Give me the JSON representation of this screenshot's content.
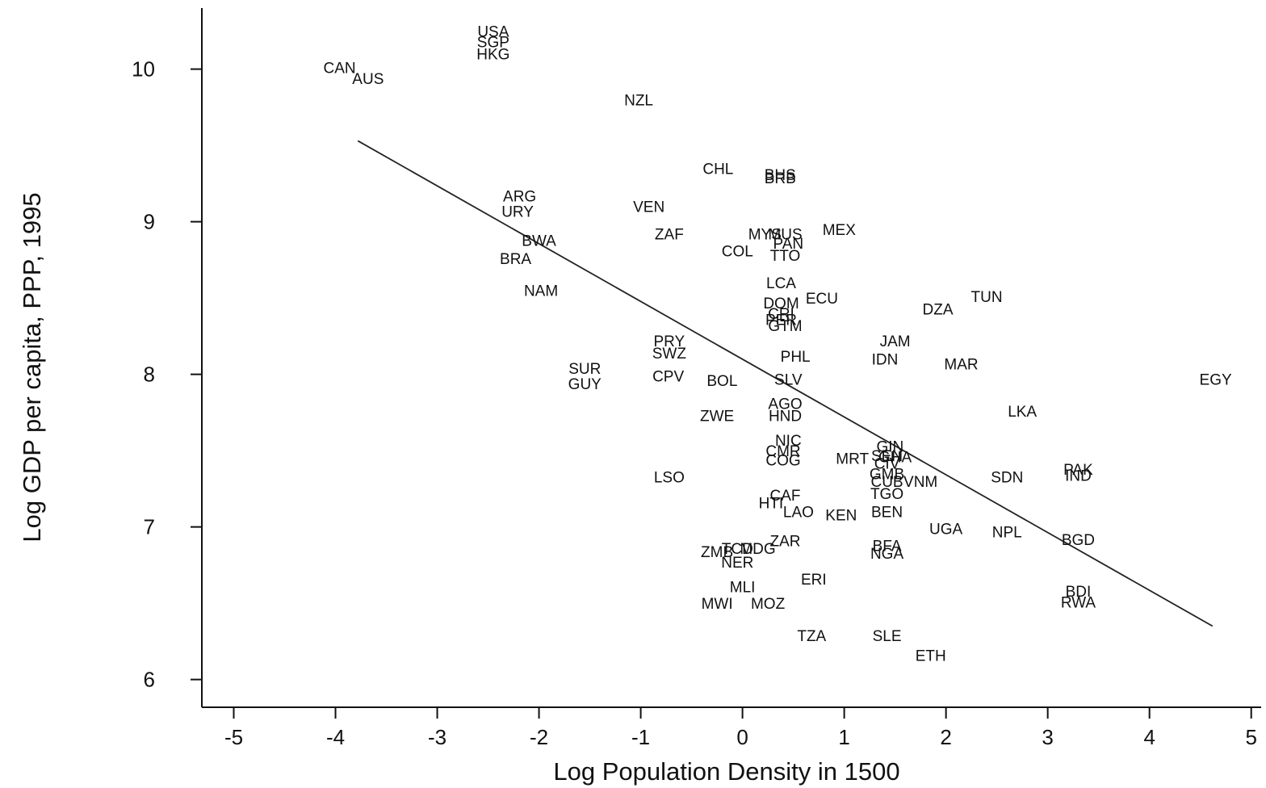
{
  "chart_data": {
    "type": "scatter",
    "title": "",
    "xlabel": "Log Population Density in 1500",
    "ylabel": "Log GDP per capita, PPP, 1995",
    "xlim": [
      -5.25,
      5.05
    ],
    "ylim": [
      5.85,
      10.4
    ],
    "xticks": [
      -5,
      -4,
      -3,
      -2,
      -1,
      0,
      1,
      2,
      3,
      4,
      5
    ],
    "yticks": [
      6,
      7,
      8,
      9,
      10
    ],
    "grid": false,
    "legend": "none",
    "fit_line": {
      "x": [
        -3.78,
        4.62
      ],
      "y": [
        9.53,
        6.35
      ]
    },
    "points": [
      {
        "label": "USA",
        "x": -2.45,
        "y": 10.25
      },
      {
        "label": "SGP",
        "x": -2.45,
        "y": 10.18
      },
      {
        "label": "HKG",
        "x": -2.45,
        "y": 10.1
      },
      {
        "label": "CAN",
        "x": -3.96,
        "y": 10.01
      },
      {
        "label": "AUS",
        "x": -3.68,
        "y": 9.94
      },
      {
        "label": "NZL",
        "x": -1.02,
        "y": 9.8
      },
      {
        "label": "CHL",
        "x": -0.24,
        "y": 9.35
      },
      {
        "label": "BHS",
        "x": 0.37,
        "y": 9.31
      },
      {
        "label": "BRB",
        "x": 0.37,
        "y": 9.29
      },
      {
        "label": "ARG",
        "x": -2.19,
        "y": 9.17
      },
      {
        "label": "URY",
        "x": -2.21,
        "y": 9.07
      },
      {
        "label": "VEN",
        "x": -0.92,
        "y": 9.1
      },
      {
        "label": "MEX",
        "x": 0.95,
        "y": 8.95
      },
      {
        "label": "MYS",
        "x": 0.22,
        "y": 8.92
      },
      {
        "label": "MUS",
        "x": 0.42,
        "y": 8.92
      },
      {
        "label": "ZAF",
        "x": -0.72,
        "y": 8.92
      },
      {
        "label": "BWA",
        "x": -2.0,
        "y": 8.88
      },
      {
        "label": "PAN",
        "x": 0.45,
        "y": 8.86
      },
      {
        "label": "COL",
        "x": -0.05,
        "y": 8.81
      },
      {
        "label": "TTO",
        "x": 0.42,
        "y": 8.78
      },
      {
        "label": "BRA",
        "x": -2.23,
        "y": 8.76
      },
      {
        "label": "LCA",
        "x": 0.38,
        "y": 8.6
      },
      {
        "label": "NAM",
        "x": -1.98,
        "y": 8.55
      },
      {
        "label": "ECU",
        "x": 0.78,
        "y": 8.5
      },
      {
        "label": "TUN",
        "x": 2.4,
        "y": 8.51
      },
      {
        "label": "DOM",
        "x": 0.38,
        "y": 8.47
      },
      {
        "label": "DZA",
        "x": 1.92,
        "y": 8.43
      },
      {
        "label": "CRI",
        "x": 0.38,
        "y": 8.4
      },
      {
        "label": "PER",
        "x": 0.38,
        "y": 8.36
      },
      {
        "label": "GTM",
        "x": 0.42,
        "y": 8.32
      },
      {
        "label": "JAM",
        "x": 1.5,
        "y": 8.22
      },
      {
        "label": "PRY",
        "x": -0.72,
        "y": 8.22
      },
      {
        "label": "SWZ",
        "x": -0.72,
        "y": 8.14
      },
      {
        "label": "PHL",
        "x": 0.52,
        "y": 8.12
      },
      {
        "label": "IDN",
        "x": 1.4,
        "y": 8.1
      },
      {
        "label": "MAR",
        "x": 2.15,
        "y": 8.07
      },
      {
        "label": "SUR",
        "x": -1.55,
        "y": 8.04
      },
      {
        "label": "GUY",
        "x": -1.55,
        "y": 7.94
      },
      {
        "label": "CPV",
        "x": -0.73,
        "y": 7.99
      },
      {
        "label": "BOL",
        "x": -0.2,
        "y": 7.96
      },
      {
        "label": "SLV",
        "x": 0.45,
        "y": 7.97
      },
      {
        "label": "EGY",
        "x": 4.65,
        "y": 7.97
      },
      {
        "label": "AGO",
        "x": 0.42,
        "y": 7.81
      },
      {
        "label": "LKA",
        "x": 2.75,
        "y": 7.76
      },
      {
        "label": "ZWE",
        "x": -0.25,
        "y": 7.73
      },
      {
        "label": "HND",
        "x": 0.42,
        "y": 7.73
      },
      {
        "label": "NIC",
        "x": 0.45,
        "y": 7.57
      },
      {
        "label": "GIN",
        "x": 1.45,
        "y": 7.53
      },
      {
        "label": "CMR",
        "x": 0.4,
        "y": 7.5
      },
      {
        "label": "SEN",
        "x": 1.42,
        "y": 7.47
      },
      {
        "label": "GHA",
        "x": 1.5,
        "y": 7.46
      },
      {
        "label": "MRT",
        "x": 1.08,
        "y": 7.45
      },
      {
        "label": "COG",
        "x": 0.4,
        "y": 7.44
      },
      {
        "label": "CIV",
        "x": 1.42,
        "y": 7.42
      },
      {
        "label": "PAK",
        "x": 3.3,
        "y": 7.38
      },
      {
        "label": "IND",
        "x": 3.3,
        "y": 7.34
      },
      {
        "label": "LSO",
        "x": -0.72,
        "y": 7.33
      },
      {
        "label": "SDN",
        "x": 2.6,
        "y": 7.33
      },
      {
        "label": "GMB",
        "x": 1.42,
        "y": 7.35
      },
      {
        "label": "VNM",
        "x": 1.75,
        "y": 7.3
      },
      {
        "label": "CUB",
        "x": 1.42,
        "y": 7.3
      },
      {
        "label": "TGO",
        "x": 1.42,
        "y": 7.22
      },
      {
        "label": "CAF",
        "x": 0.42,
        "y": 7.21
      },
      {
        "label": "HTI",
        "x": 0.28,
        "y": 7.16
      },
      {
        "label": "LAO",
        "x": 0.55,
        "y": 7.1
      },
      {
        "label": "BEN",
        "x": 1.42,
        "y": 7.1
      },
      {
        "label": "KEN",
        "x": 0.97,
        "y": 7.08
      },
      {
        "label": "UGA",
        "x": 2.0,
        "y": 6.99
      },
      {
        "label": "NPL",
        "x": 2.6,
        "y": 6.97
      },
      {
        "label": "BGD",
        "x": 3.3,
        "y": 6.92
      },
      {
        "label": "ZAR",
        "x": 0.42,
        "y": 6.91
      },
      {
        "label": "BFA",
        "x": 1.42,
        "y": 6.88
      },
      {
        "label": "TCD",
        "x": -0.05,
        "y": 6.86
      },
      {
        "label": "MDG",
        "x": 0.15,
        "y": 6.86
      },
      {
        "label": "ZMB",
        "x": -0.25,
        "y": 6.84
      },
      {
        "label": "NGA",
        "x": 1.42,
        "y": 6.83
      },
      {
        "label": "NER",
        "x": -0.05,
        "y": 6.77
      },
      {
        "label": "ERI",
        "x": 0.7,
        "y": 6.66
      },
      {
        "label": "BDI",
        "x": 3.3,
        "y": 6.58
      },
      {
        "label": "MLI",
        "x": 0.0,
        "y": 6.61
      },
      {
        "label": "RWA",
        "x": 3.3,
        "y": 6.51
      },
      {
        "label": "MWI",
        "x": -0.25,
        "y": 6.5
      },
      {
        "label": "MOZ",
        "x": 0.25,
        "y": 6.5
      },
      {
        "label": "TZA",
        "x": 0.68,
        "y": 6.29
      },
      {
        "label": "SLE",
        "x": 1.42,
        "y": 6.29
      },
      {
        "label": "ETH",
        "x": 1.85,
        "y": 6.16
      }
    ]
  }
}
